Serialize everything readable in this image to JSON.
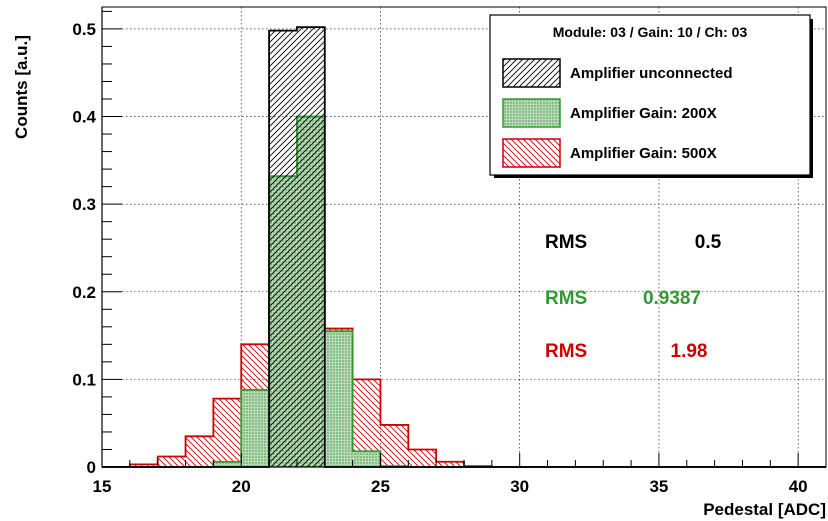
{
  "chart_data": {
    "type": "bar",
    "subtype": "step-histogram",
    "xlabel": "Pedestal [ADC]",
    "ylabel": "Counts [a.u.]",
    "xlim": [
      15,
      41
    ],
    "ylim": [
      0,
      0.525
    ],
    "bin_width": 1,
    "x_ticks": [
      15,
      20,
      25,
      30,
      35,
      40
    ],
    "y_ticks": [
      0,
      0.1,
      0.2,
      0.3,
      0.4,
      0.5
    ],
    "x_tick_labels": [
      "15",
      "20",
      "25",
      "30",
      "35",
      "40"
    ],
    "y_tick_labels": [
      "0",
      "0.1",
      "0.2",
      "0.3",
      "0.4",
      "0.5"
    ],
    "grid": true,
    "legend": {
      "placement": "top-right",
      "header": "Module: 03 / Gain: 10 / Ch: 03"
    },
    "series": [
      {
        "name": "Amplifier Gain: 500X",
        "color": "#cc0000",
        "hatch": "diagonal-down",
        "bin_lefts": [
          16,
          17,
          18,
          19,
          20,
          21,
          22,
          23,
          24,
          25,
          26,
          27,
          28
        ],
        "values": [
          0.003,
          0.012,
          0.035,
          0.078,
          0.14,
          0.193,
          0.2,
          0.158,
          0.1,
          0.048,
          0.02,
          0.006,
          0.001
        ]
      },
      {
        "name": "Amplifier Gain: 200X",
        "color": "#339933",
        "hatch": "dots",
        "bin_lefts": [
          19,
          20,
          21,
          22,
          23,
          24,
          25
        ],
        "values": [
          0.006,
          0.088,
          0.332,
          0.4,
          0.155,
          0.018,
          0.001
        ]
      },
      {
        "name": "Amplifier unconnected",
        "color": "#000000",
        "hatch": "diagonal-up",
        "bin_lefts": [
          21,
          22
        ],
        "values": [
          0.498,
          0.502
        ]
      }
    ],
    "annotations": [
      {
        "label": "RMS",
        "value": "0.5",
        "color": "#000000"
      },
      {
        "label": "RMS",
        "value": "0.9387",
        "color": "#339933"
      },
      {
        "label": "RMS",
        "value": "1.98",
        "color": "#cc0000"
      }
    ]
  }
}
